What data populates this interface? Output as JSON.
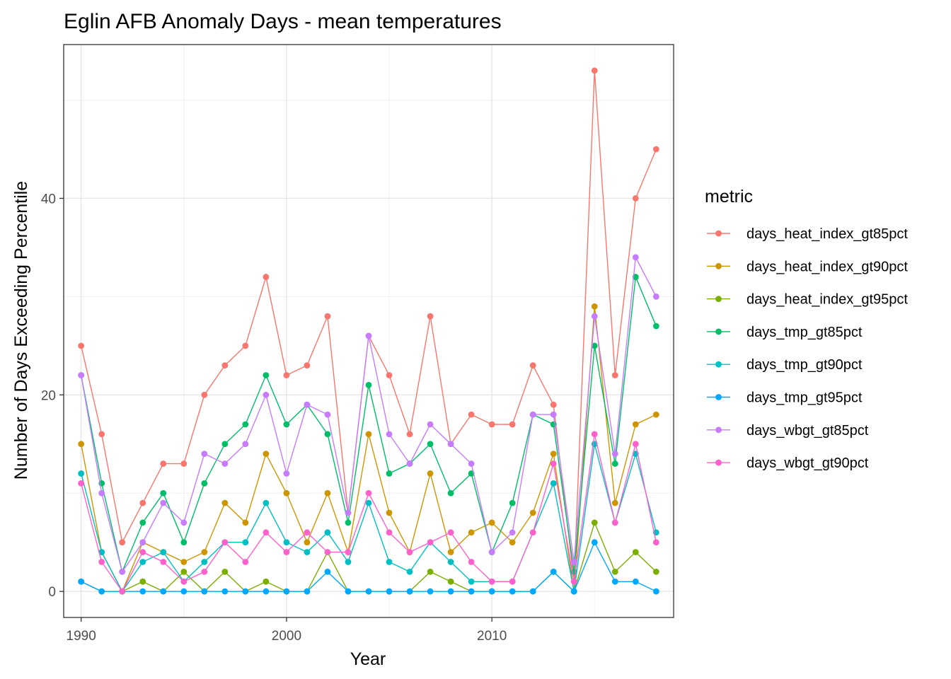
{
  "chart_data": {
    "type": "line",
    "title": "Eglin AFB Anomaly Days - mean temperatures",
    "xlabel": "Year",
    "ylabel": "Number of Days Exceeding Percentile",
    "xlim": [
      1989.15,
      2018.85
    ],
    "ylim": [
      -2.65,
      55.65
    ],
    "x_ticks": [
      1990,
      2000,
      2010
    ],
    "y_ticks": [
      0,
      20,
      40
    ],
    "y_minor": [
      10,
      30,
      50
    ],
    "x_minor": [
      1995,
      2005,
      2015
    ],
    "grid": true,
    "legend_title": "metric",
    "legend_position": "right",
    "x": [
      1990,
      1991,
      1992,
      1993,
      1994,
      1995,
      1996,
      1997,
      1998,
      1999,
      2000,
      2001,
      2002,
      2003,
      2004,
      2005,
      2006,
      2007,
      2008,
      2009,
      2010,
      2011,
      2012,
      2013,
      2014,
      2015,
      2016,
      2017,
      2018
    ],
    "series": [
      {
        "name": "days_heat_index_gt85pct",
        "color": "#F8766D",
        "values": [
          25,
          16,
          5,
          9,
          13,
          13,
          20,
          23,
          25,
          32,
          22,
          23,
          28,
          8,
          26,
          22,
          16,
          28,
          15,
          18,
          17,
          17,
          23,
          19,
          1,
          53,
          22,
          40,
          45
        ]
      },
      {
        "name": "days_heat_index_gt90pct",
        "color": "#CD9600",
        "values": [
          15,
          4,
          0,
          5,
          4,
          3,
          4,
          9,
          7,
          14,
          10,
          5,
          10,
          4,
          16,
          8,
          4,
          12,
          4,
          6,
          7,
          5,
          8,
          14,
          0,
          29,
          9,
          17,
          18
        ]
      },
      {
        "name": "days_heat_index_gt95pct",
        "color": "#7CAE00",
        "values": [
          1,
          0,
          0,
          1,
          0,
          2,
          0,
          2,
          0,
          1,
          0,
          0,
          4,
          0,
          0,
          0,
          0,
          2,
          1,
          0,
          0,
          0,
          0,
          2,
          0,
          7,
          2,
          4,
          2
        ]
      },
      {
        "name": "days_tmp_gt85pct",
        "color": "#00BE67",
        "values": [
          22,
          11,
          2,
          7,
          10,
          5,
          11,
          15,
          17,
          22,
          17,
          19,
          16,
          7,
          21,
          12,
          13,
          15,
          10,
          12,
          4,
          9,
          18,
          17,
          2,
          25,
          13,
          32,
          27
        ]
      },
      {
        "name": "days_tmp_gt90pct",
        "color": "#00BFC4",
        "values": [
          12,
          4,
          0,
          3,
          4,
          1,
          3,
          5,
          5,
          9,
          5,
          4,
          6,
          3,
          9,
          3,
          2,
          5,
          3,
          1,
          1,
          1,
          6,
          11,
          0,
          15,
          7,
          14,
          6
        ]
      },
      {
        "name": "days_tmp_gt95pct",
        "color": "#00A9FF",
        "values": [
          1,
          0,
          0,
          0,
          0,
          0,
          0,
          0,
          0,
          0,
          0,
          0,
          2,
          0,
          0,
          0,
          0,
          0,
          0,
          0,
          0,
          0,
          0,
          2,
          0,
          5,
          1,
          1,
          0
        ]
      },
      {
        "name": "days_wbgt_gt85pct",
        "color": "#C77CFF",
        "values": [
          22,
          10,
          2,
          5,
          9,
          7,
          14,
          13,
          15,
          20,
          12,
          19,
          18,
          8,
          26,
          16,
          13,
          17,
          15,
          13,
          4,
          6,
          18,
          18,
          3,
          28,
          14,
          34,
          30
        ]
      },
      {
        "name": "days_wbgt_gt90pct",
        "color": "#FF61CC",
        "values": [
          11,
          3,
          0,
          4,
          3,
          1,
          2,
          5,
          3,
          6,
          4,
          6,
          4,
          4,
          10,
          6,
          4,
          5,
          6,
          3,
          1,
          1,
          6,
          13,
          1,
          16,
          7,
          15,
          5
        ]
      }
    ]
  }
}
